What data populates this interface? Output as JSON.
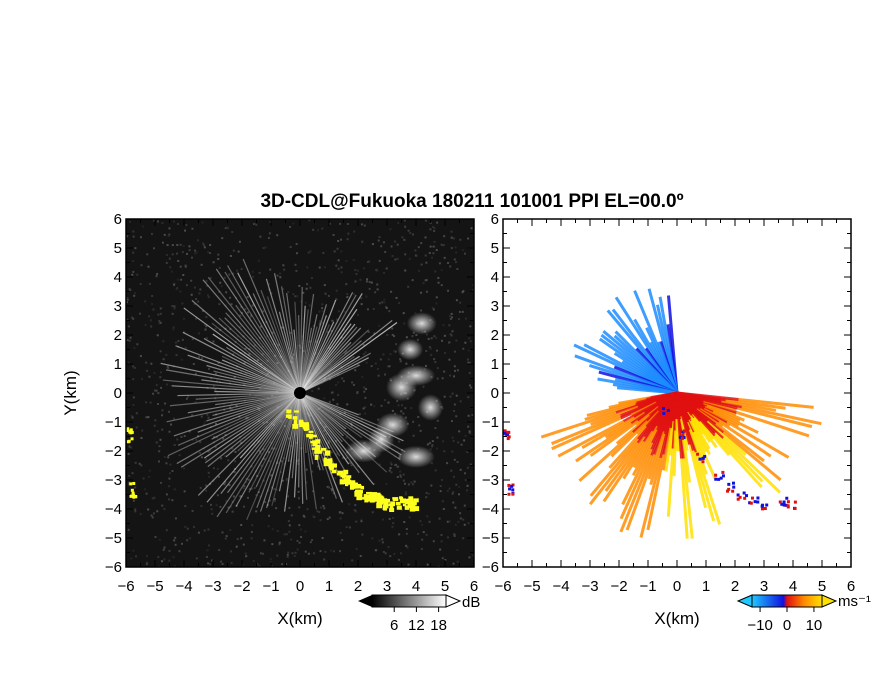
{
  "title": "3D-CDL@Fukuoka 180211 101001 PPI EL=00.0º",
  "colors": {
    "reflectivity_background": "#141414",
    "reflectivity_echo": "#d8d8d8",
    "ground_clutter": "#ffff1e",
    "velocity_low": "#1c8cff",
    "velocity_zero_neg": "#1010e0",
    "velocity_zero_pos": "#e01010",
    "velocity_high": "#ff8c00",
    "velocity_max": "#ffe000"
  },
  "chart_data": [
    {
      "type": "heatmap",
      "panel": "reflectivity",
      "xlabel": "X(km)",
      "ylabel": "Y(km)",
      "xlim": [
        -6,
        6
      ],
      "ylim": [
        -6,
        6
      ],
      "xticks": [
        "−6",
        "−5",
        "−4",
        "−3",
        "−2",
        "−1",
        "0",
        "1",
        "2",
        "3",
        "4",
        "5",
        "6"
      ],
      "yticks": [
        "6",
        "5",
        "4",
        "3",
        "2",
        "1",
        "0",
        "−1",
        "−2",
        "−3",
        "−4",
        "−5",
        "−6"
      ],
      "colorbar": {
        "unit": "dB",
        "ticks": [
          "6",
          "12",
          "18"
        ],
        "range": [
          0,
          20
        ]
      },
      "scan_center": [
        0,
        0
      ],
      "clutter_band": [
        [
          -0.4,
          -0.6
        ],
        [
          0.2,
          -1.4
        ],
        [
          0.8,
          -2.2
        ],
        [
          1.4,
          -2.8
        ],
        [
          1.8,
          -3.2
        ],
        [
          2.2,
          -3.5
        ],
        [
          2.6,
          -3.6
        ],
        [
          3.0,
          -3.8
        ],
        [
          3.6,
          -3.7
        ],
        [
          3.9,
          -3.8
        ]
      ],
      "edge_clutter": [
        [
          -5.9,
          -1.4
        ],
        [
          -5.8,
          -3.3
        ]
      ],
      "echo_cells": [
        [
          4.2,
          2.4
        ],
        [
          3.8,
          1.5
        ],
        [
          4.0,
          0.6
        ],
        [
          3.5,
          0.2
        ],
        [
          3.2,
          -1.1
        ],
        [
          2.8,
          -1.6
        ],
        [
          4.0,
          -2.2
        ],
        [
          2.2,
          -2.0
        ],
        [
          4.5,
          -0.5
        ]
      ]
    },
    {
      "type": "heatmap",
      "panel": "doppler_velocity",
      "xlabel": "X(km)",
      "ylabel": "",
      "xlim": [
        -6,
        6
      ],
      "ylim": [
        -6,
        6
      ],
      "xticks": [
        "−6",
        "−5",
        "−4",
        "−3",
        "−2",
        "−1",
        "0",
        "1",
        "2",
        "3",
        "4",
        "5",
        "6"
      ],
      "yticks": [
        "6",
        "5",
        "4",
        "3",
        "2",
        "1",
        "0",
        "−1",
        "−2",
        "−3",
        "−4",
        "−5",
        "−6"
      ],
      "colorbar": {
        "unit": "ms⁻¹",
        "ticks": [
          "−10",
          "0",
          "10"
        ],
        "range": [
          -13,
          13
        ]
      },
      "scan_center": [
        0,
        0
      ],
      "approaching_sector_deg": [
        95,
        175
      ],
      "receding_sector_deg": [
        190,
        355
      ],
      "max_range_km": 5.2
    }
  ]
}
